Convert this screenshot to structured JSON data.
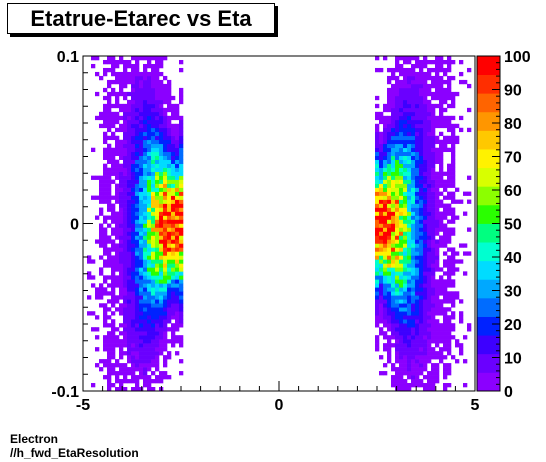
{
  "title": "Etatrue-Etarec vs Eta",
  "footer": {
    "line1": "Electron",
    "line2": "//h_fwd_EtaResolution"
  },
  "chart_data": {
    "type": "heatmap",
    "title": "Etatrue-Etarec vs Eta",
    "xlabel": "",
    "ylabel": "",
    "xlim": [
      -5,
      5
    ],
    "ylim": [
      -0.1,
      0.1
    ],
    "zlim": [
      0,
      100
    ],
    "x_ticks": [
      -5,
      0,
      5
    ],
    "x_tick_labels": [
      "-5",
      "0",
      "5"
    ],
    "y_ticks": [
      -0.1,
      0,
      0.1
    ],
    "y_tick_labels": [
      "-0.1",
      "0",
      "0.1"
    ],
    "z_ticks": [
      0,
      10,
      20,
      30,
      40,
      50,
      60,
      70,
      80,
      90,
      100
    ],
    "z_tick_labels": [
      "0",
      "10",
      "20",
      "30",
      "40",
      "50",
      "60",
      "70",
      "80",
      "90",
      "100"
    ],
    "grid": false,
    "palette": [
      "#8b00ff",
      "#6a00ff",
      "#3d00ff",
      "#0022ff",
      "#006cff",
      "#00a8ff",
      "#00dcff",
      "#00ffd0",
      "#00ff80",
      "#2aff00",
      "#8cff00",
      "#d8ff00",
      "#fff200",
      "#ffc800",
      "#ff9600",
      "#ff6400",
      "#ff2e00",
      "#ff0000"
    ],
    "clusters": [
      {
        "name": "negative-eta",
        "x_range": [
          -4.9,
          -2.45
        ],
        "peak_x": -2.65,
        "y_spread": 0.045,
        "peak": 100
      },
      {
        "name": "positive-eta",
        "x_range": [
          2.45,
          4.9
        ],
        "peak_x": 2.6,
        "y_spread": 0.045,
        "peak": 100
      }
    ]
  }
}
